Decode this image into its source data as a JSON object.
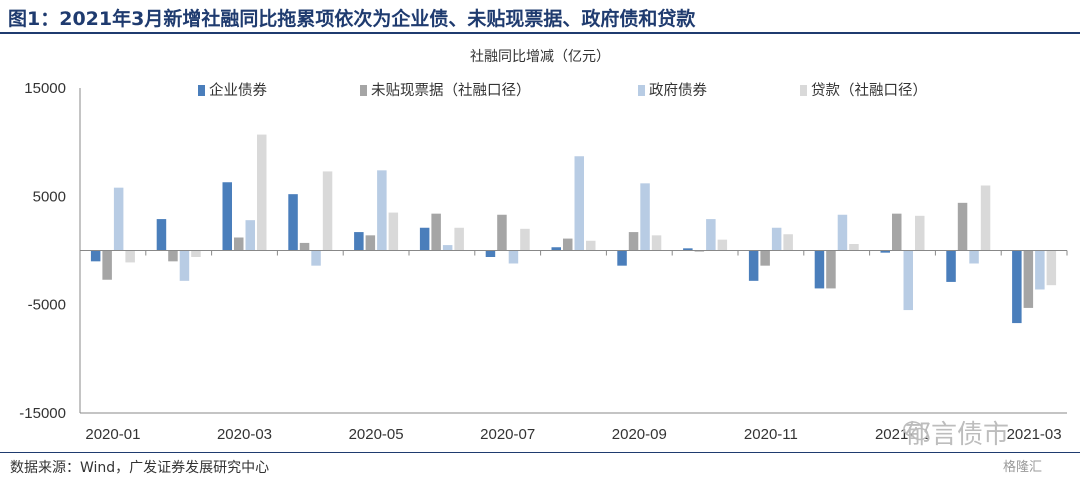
{
  "figure": {
    "title": "图1：2021年3月新增社融同比拖累项依次为企业债、未贴现票据、政府债和贷款",
    "source": "数据来源：Wind，广发证券发展研究中心",
    "watermark": "郁言债市",
    "watermark_small": "格隆汇"
  },
  "chart_data": {
    "type": "bar",
    "title": "社融同比增减（亿元）",
    "xlabel": "",
    "ylabel": "",
    "ylim": [
      -15000,
      15000
    ],
    "yticks": [
      15000,
      5000,
      -5000,
      -15000
    ],
    "ytick_labels": [
      "15000",
      "5000",
      "-5000",
      "-15000"
    ],
    "grid": false,
    "legend_position": "top",
    "categories": [
      "2020-01",
      "2020-02",
      "2020-03",
      "2020-04",
      "2020-05",
      "2020-06",
      "2020-07",
      "2020-08",
      "2020-09",
      "2020-10",
      "2020-11",
      "2020-12",
      "2021-01",
      "2021-02",
      "2021-03"
    ],
    "xtick_labels": [
      "2020-01",
      "2020-03",
      "2020-05",
      "2020-07",
      "2020-09",
      "2020-11",
      "2021-01",
      "2021-03"
    ],
    "xtick_indices": [
      0,
      2,
      4,
      6,
      8,
      10,
      12,
      14
    ],
    "series": [
      {
        "name": "企业债券",
        "color": "#4a7ebb",
        "values": [
          -1000,
          2900,
          6300,
          5200,
          1700,
          2100,
          -600,
          300,
          -1400,
          200,
          -2800,
          -3500,
          -200,
          -2900,
          -6700
        ]
      },
      {
        "name": "未贴现票据（社融口径）",
        "color": "#a5a5a5",
        "values": [
          -2700,
          -1000,
          1200,
          700,
          1400,
          3400,
          3300,
          1100,
          1700,
          -100,
          -1400,
          -3500,
          3400,
          4400,
          -5300
        ]
      },
      {
        "name": "政府债券",
        "color": "#b8cce4",
        "values": [
          5800,
          -2800,
          2800,
          -1400,
          7400,
          500,
          -1200,
          8700,
          6200,
          2900,
          2100,
          3300,
          -5500,
          -1200,
          -3600
        ]
      },
      {
        "name": "贷款（社融口径）",
        "color": "#d9d9d9",
        "values": [
          -1100,
          -600,
          10700,
          7300,
          3500,
          2100,
          2000,
          900,
          1400,
          1000,
          1500,
          600,
          3200,
          6000,
          -3200
        ]
      }
    ]
  }
}
